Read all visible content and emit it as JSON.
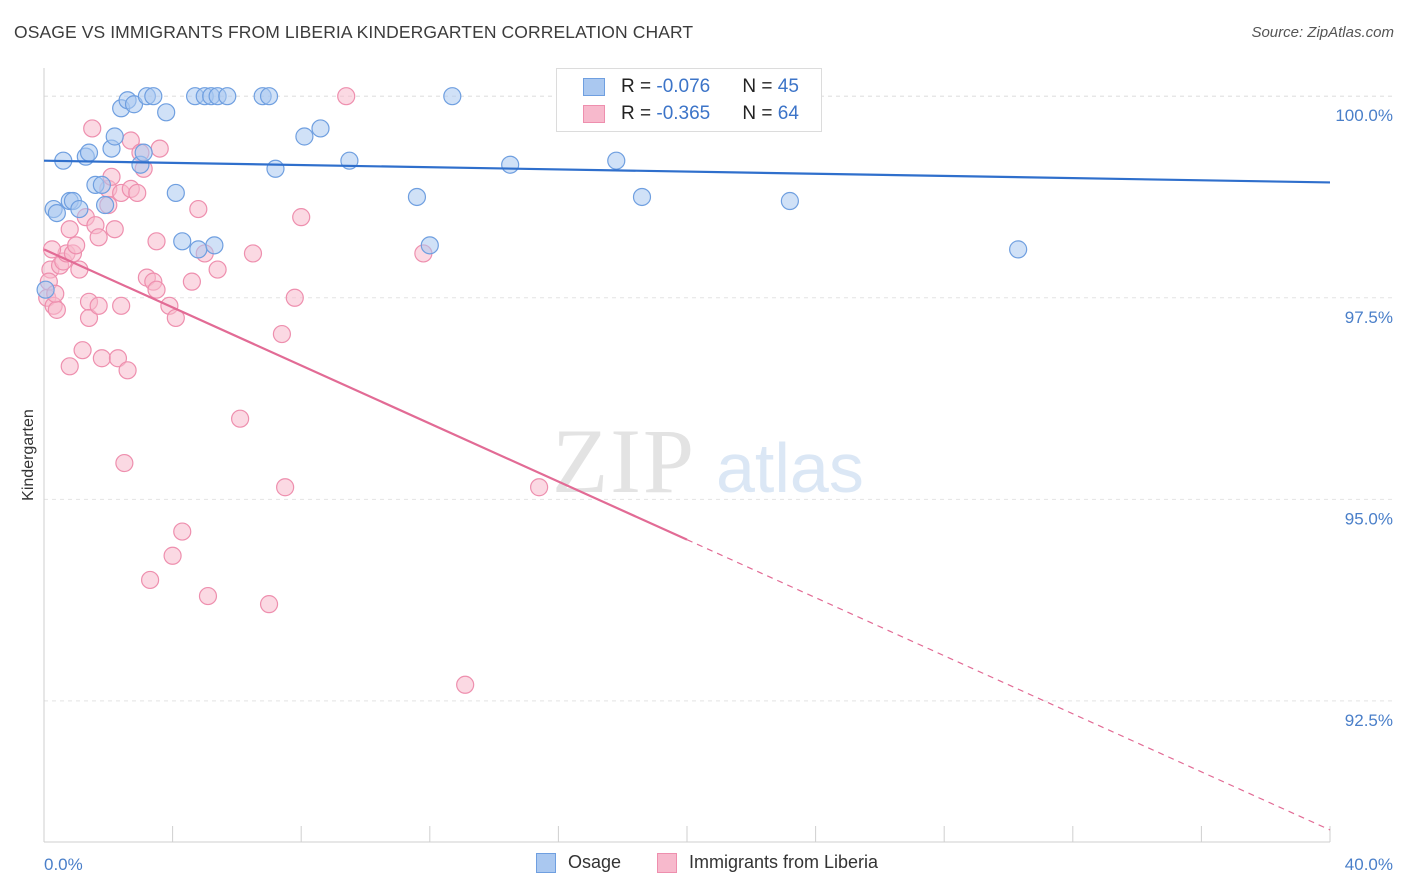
{
  "header": {
    "title": "OSAGE VS IMMIGRANTS FROM LIBERIA KINDERGARTEN CORRELATION CHART",
    "source": "Source: ZipAtlas.com"
  },
  "watermark": {
    "zip": "ZIP",
    "atlas": "atlas"
  },
  "legend": {
    "rows": [
      {
        "r_label": "R = ",
        "r_value": "-0.076",
        "n_label": "N = ",
        "n_value": "45"
      },
      {
        "r_label": "R = ",
        "r_value": "-0.365",
        "n_label": "N = ",
        "n_value": "64"
      }
    ]
  },
  "bottom_legend": [
    "Osage",
    "Immigrants from Liberia"
  ],
  "colors": {
    "osage_fill": "#aac8f0",
    "osage_stroke": "#6f9fe0",
    "osage_line": "#2f6fcc",
    "liberia_fill": "#f7b9cc",
    "liberia_stroke": "#ee8fae",
    "liberia_line": "#e26b95",
    "tick_text": "#4a7fc9",
    "grid": "#e4e4e4"
  },
  "chart_data": {
    "type": "scatter",
    "title": "OSAGE VS IMMIGRANTS FROM LIBERIA KINDERGARTEN CORRELATION CHART",
    "xlabel": "",
    "ylabel": "Kindergarten",
    "xlim": [
      0,
      40
    ],
    "ylim": [
      90.75,
      100.3
    ],
    "x_tick_labels": [
      "0.0%",
      "40.0%"
    ],
    "y_ticks": [
      100.0,
      97.5,
      95.0,
      92.5
    ],
    "y_tick_labels": [
      "100.0%",
      "97.5%",
      "95.0%",
      "92.5%"
    ],
    "grid": true,
    "series": [
      {
        "name": "Osage",
        "r": -0.076,
        "n": 45,
        "trend": {
          "x": [
            0,
            40
          ],
          "y": [
            99.2,
            98.93
          ],
          "dashed_from_x": null
        },
        "points": [
          [
            0.3,
            98.6
          ],
          [
            0.4,
            98.55
          ],
          [
            0.6,
            99.2
          ],
          [
            0.8,
            98.7
          ],
          [
            0.9,
            98.7
          ],
          [
            1.1,
            98.6
          ],
          [
            1.3,
            99.25
          ],
          [
            1.4,
            99.3
          ],
          [
            1.6,
            98.9
          ],
          [
            1.8,
            98.9
          ],
          [
            1.9,
            98.65
          ],
          [
            2.1,
            99.35
          ],
          [
            2.2,
            99.5
          ],
          [
            2.4,
            99.85
          ],
          [
            2.6,
            99.95
          ],
          [
            2.8,
            99.9
          ],
          [
            3.0,
            99.15
          ],
          [
            3.1,
            99.3
          ],
          [
            3.2,
            100.0
          ],
          [
            3.4,
            100.0
          ],
          [
            3.8,
            99.8
          ],
          [
            4.1,
            98.8
          ],
          [
            4.3,
            98.2
          ],
          [
            4.7,
            100.0
          ],
          [
            4.8,
            98.1
          ],
          [
            5.0,
            100.0
          ],
          [
            5.2,
            100.0
          ],
          [
            5.4,
            100.0
          ],
          [
            5.3,
            98.15
          ],
          [
            5.7,
            100.0
          ],
          [
            6.8,
            100.0
          ],
          [
            7.0,
            100.0
          ],
          [
            7.2,
            99.1
          ],
          [
            8.1,
            99.5
          ],
          [
            8.6,
            99.6
          ],
          [
            9.5,
            99.2
          ],
          [
            11.6,
            98.75
          ],
          [
            12.0,
            98.15
          ],
          [
            12.7,
            100.0
          ],
          [
            14.5,
            99.15
          ],
          [
            17.8,
            99.2
          ],
          [
            18.6,
            98.75
          ],
          [
            23.2,
            98.7
          ],
          [
            30.3,
            98.1
          ],
          [
            0.05,
            97.6
          ]
        ]
      },
      {
        "name": "Immigrants from Liberia",
        "r": -0.365,
        "n": 64,
        "trend": {
          "x": [
            0,
            40
          ],
          "y": [
            98.1,
            90.9
          ],
          "dashed_from_x": 20.0
        },
        "points": [
          [
            0.1,
            97.5
          ],
          [
            0.2,
            97.85
          ],
          [
            0.3,
            97.4
          ],
          [
            0.4,
            97.35
          ],
          [
            0.5,
            97.9
          ],
          [
            0.6,
            97.95
          ],
          [
            0.7,
            98.05
          ],
          [
            0.8,
            98.35
          ],
          [
            0.8,
            96.65
          ],
          [
            0.9,
            98.05
          ],
          [
            1.0,
            98.15
          ],
          [
            1.1,
            97.85
          ],
          [
            1.2,
            96.85
          ],
          [
            1.3,
            98.5
          ],
          [
            1.4,
            97.45
          ],
          [
            1.4,
            97.25
          ],
          [
            1.5,
            99.6
          ],
          [
            1.6,
            98.4
          ],
          [
            1.7,
            97.4
          ],
          [
            1.7,
            98.25
          ],
          [
            1.8,
            96.75
          ],
          [
            2.0,
            98.85
          ],
          [
            2.0,
            98.65
          ],
          [
            2.1,
            99.0
          ],
          [
            2.2,
            98.35
          ],
          [
            2.3,
            96.75
          ],
          [
            2.4,
            98.8
          ],
          [
            2.4,
            97.4
          ],
          [
            2.5,
            95.45
          ],
          [
            2.6,
            96.6
          ],
          [
            2.7,
            98.85
          ],
          [
            2.7,
            99.45
          ],
          [
            2.9,
            98.8
          ],
          [
            3.0,
            99.3
          ],
          [
            3.1,
            99.1
          ],
          [
            3.2,
            97.75
          ],
          [
            3.3,
            94.0
          ],
          [
            3.4,
            97.7
          ],
          [
            3.5,
            98.2
          ],
          [
            3.5,
            97.6
          ],
          [
            3.6,
            99.35
          ],
          [
            3.9,
            97.4
          ],
          [
            4.0,
            94.3
          ],
          [
            4.1,
            97.25
          ],
          [
            4.3,
            94.6
          ],
          [
            4.6,
            97.7
          ],
          [
            4.8,
            98.6
          ],
          [
            5.0,
            98.05
          ],
          [
            5.1,
            93.8
          ],
          [
            5.4,
            97.85
          ],
          [
            6.1,
            96.0
          ],
          [
            6.5,
            98.05
          ],
          [
            7.0,
            93.7
          ],
          [
            7.4,
            97.05
          ],
          [
            7.5,
            95.15
          ],
          [
            7.8,
            97.5
          ],
          [
            8.0,
            98.5
          ],
          [
            9.4,
            100.0
          ],
          [
            11.8,
            98.05
          ],
          [
            13.1,
            92.7
          ],
          [
            15.4,
            95.15
          ],
          [
            0.15,
            97.7
          ],
          [
            0.25,
            98.1
          ],
          [
            0.35,
            97.55
          ]
        ]
      }
    ]
  }
}
